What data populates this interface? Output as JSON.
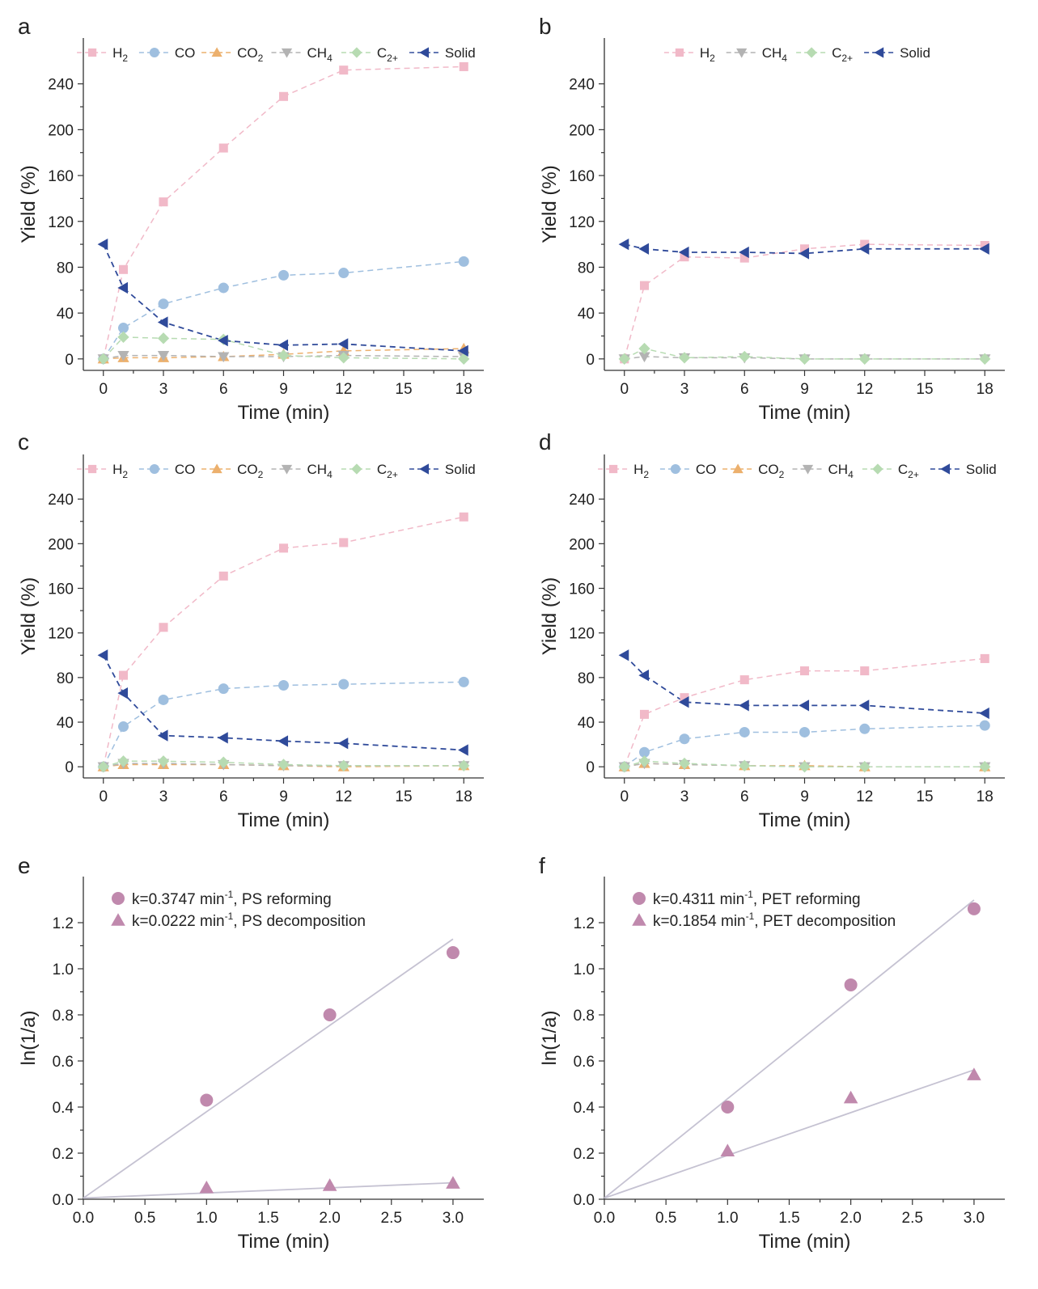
{
  "figure": {
    "colors": {
      "H2": "#f1b9c8",
      "CO": "#9fbfdf",
      "CO2": "#ecb06d",
      "CH4": "#b3b3b3",
      "C2+": "#b7dbb2",
      "Solid": "#2f4a9a",
      "kinetic_marker": "#c089ad",
      "fit_line": "#c5c2d2",
      "axis": "#333333"
    }
  },
  "chart_data": [
    {
      "panel": "a",
      "type": "line",
      "xlabel": "Time (min)",
      "ylabel": "Yield (%)",
      "xlim": [
        -1,
        19
      ],
      "ylim": [
        -10,
        280
      ],
      "xticks": [
        0,
        3,
        6,
        9,
        12,
        15,
        18
      ],
      "yticks": [
        0,
        40,
        80,
        120,
        160,
        200,
        240
      ],
      "x": [
        0,
        1,
        3,
        6,
        9,
        12,
        18
      ],
      "legend_position": "top",
      "series": [
        {
          "key": "H2",
          "name": "H",
          "sub": "2",
          "marker": "square",
          "values": [
            0,
            78,
            137,
            184,
            229,
            252,
            255
          ]
        },
        {
          "key": "CO",
          "name": "CO",
          "sub": "",
          "marker": "circle",
          "values": [
            0,
            27,
            48,
            62,
            73,
            75,
            85
          ]
        },
        {
          "key": "CO2",
          "name": "CO",
          "sub": "2",
          "marker": "triangle-up",
          "values": [
            0,
            1,
            1,
            2,
            4,
            7,
            9
          ]
        },
        {
          "key": "CH4",
          "name": "CH",
          "sub": "4",
          "marker": "triangle-down",
          "values": [
            0,
            3,
            3,
            2,
            2,
            3,
            2
          ]
        },
        {
          "key": "C2+",
          "name": "C",
          "sub": "2+",
          "marker": "diamond",
          "values": [
            0,
            19,
            18,
            17,
            3,
            1,
            0
          ]
        },
        {
          "key": "Solid",
          "name": "Solid",
          "sub": "",
          "marker": "triangle-left",
          "values": [
            100,
            62,
            32,
            16,
            12,
            13,
            7
          ]
        }
      ]
    },
    {
      "panel": "b",
      "type": "line",
      "xlabel": "Time (min)",
      "ylabel": "Yield (%)",
      "xlim": [
        -1,
        19
      ],
      "ylim": [
        -10,
        280
      ],
      "xticks": [
        0,
        3,
        6,
        9,
        12,
        15,
        18
      ],
      "yticks": [
        0,
        40,
        80,
        120,
        160,
        200,
        240
      ],
      "x": [
        0,
        1,
        3,
        6,
        9,
        12,
        18
      ],
      "legend_position": "top",
      "series": [
        {
          "key": "H2",
          "name": "H",
          "sub": "2",
          "marker": "square",
          "values": [
            0,
            64,
            89,
            88,
            96,
            100,
            99
          ]
        },
        {
          "key": "CH4",
          "name": "CH",
          "sub": "4",
          "marker": "triangle-down",
          "values": [
            0,
            2,
            1,
            1,
            0,
            0,
            0
          ]
        },
        {
          "key": "C2+",
          "name": "C",
          "sub": "2+",
          "marker": "diamond",
          "values": [
            0,
            9,
            1,
            2,
            0,
            0,
            0
          ]
        },
        {
          "key": "Solid",
          "name": "Solid",
          "sub": "",
          "marker": "triangle-left",
          "values": [
            100,
            96,
            93,
            93,
            92,
            96,
            96
          ]
        }
      ]
    },
    {
      "panel": "c",
      "type": "line",
      "xlabel": "Time (min)",
      "ylabel": "Yield (%)",
      "xlim": [
        -1,
        19
      ],
      "ylim": [
        -10,
        280
      ],
      "xticks": [
        0,
        3,
        6,
        9,
        12,
        15,
        18
      ],
      "yticks": [
        0,
        40,
        80,
        120,
        160,
        200,
        240
      ],
      "x": [
        0,
        1,
        3,
        6,
        9,
        12,
        18
      ],
      "legend_position": "top",
      "series": [
        {
          "key": "H2",
          "name": "H",
          "sub": "2",
          "marker": "square",
          "values": [
            0,
            82,
            125,
            171,
            196,
            201,
            224
          ]
        },
        {
          "key": "CO",
          "name": "CO",
          "sub": "",
          "marker": "circle",
          "values": [
            0,
            36,
            60,
            70,
            73,
            74,
            76
          ]
        },
        {
          "key": "CO2",
          "name": "CO",
          "sub": "2",
          "marker": "triangle-up",
          "values": [
            0,
            2,
            2,
            2,
            1,
            0,
            1
          ]
        },
        {
          "key": "CH4",
          "name": "CH",
          "sub": "4",
          "marker": "triangle-down",
          "values": [
            0,
            3,
            3,
            2,
            1,
            1,
            1
          ]
        },
        {
          "key": "C2+",
          "name": "C",
          "sub": "2+",
          "marker": "diamond",
          "values": [
            0,
            5,
            5,
            4,
            2,
            1,
            1
          ]
        },
        {
          "key": "Solid",
          "name": "Solid",
          "sub": "",
          "marker": "triangle-left",
          "values": [
            100,
            66,
            28,
            26,
            23,
            21,
            15
          ]
        }
      ]
    },
    {
      "panel": "d",
      "type": "line",
      "xlabel": "Time (min)",
      "ylabel": "Yield (%)",
      "xlim": [
        -1,
        19
      ],
      "ylim": [
        -10,
        280
      ],
      "xticks": [
        0,
        3,
        6,
        9,
        12,
        15,
        18
      ],
      "yticks": [
        0,
        40,
        80,
        120,
        160,
        200,
        240
      ],
      "x": [
        0,
        1,
        3,
        6,
        9,
        12,
        18
      ],
      "legend_position": "top",
      "series": [
        {
          "key": "H2",
          "name": "H",
          "sub": "2",
          "marker": "square",
          "values": [
            0,
            47,
            62,
            78,
            86,
            86,
            97
          ]
        },
        {
          "key": "CO",
          "name": "CO",
          "sub": "",
          "marker": "circle",
          "values": [
            0,
            13,
            25,
            31,
            31,
            34,
            37
          ]
        },
        {
          "key": "CO2",
          "name": "CO",
          "sub": "2",
          "marker": "triangle-up",
          "values": [
            0,
            3,
            2,
            1,
            1,
            0,
            0
          ]
        },
        {
          "key": "CH4",
          "name": "CH",
          "sub": "4",
          "marker": "triangle-down",
          "values": [
            0,
            3,
            2,
            1,
            0,
            0,
            0
          ]
        },
        {
          "key": "C2+",
          "name": "C",
          "sub": "2+",
          "marker": "diamond",
          "values": [
            0,
            5,
            3,
            1,
            0,
            0,
            0
          ]
        },
        {
          "key": "Solid",
          "name": "Solid",
          "sub": "",
          "marker": "triangle-left",
          "values": [
            100,
            82,
            58,
            55,
            55,
            55,
            48
          ]
        }
      ]
    },
    {
      "panel": "e",
      "type": "scatter",
      "xlabel": "Time (min)",
      "ylabel": "ln(1/a)",
      "xlim": [
        0,
        3.25
      ],
      "ylim": [
        0,
        1.4
      ],
      "xticks": [
        0.0,
        0.5,
        1.0,
        1.5,
        2.0,
        2.5,
        3.0
      ],
      "xtick_labels": [
        "0.0",
        "0.5",
        "1.0",
        "1.5",
        "2.0",
        "2.5",
        "3.0"
      ],
      "yticks": [
        0.0,
        0.2,
        0.4,
        0.6,
        0.8,
        1.0,
        1.2
      ],
      "ytick_labels": [
        "0.0",
        "0.2",
        "0.4",
        "0.6",
        "0.8",
        "1.0",
        "1.2"
      ],
      "legend_position": "top-left",
      "series": [
        {
          "name": "PS reforming",
          "k_label": "k=0.3747 min",
          "sup": "-1",
          "marker": "circle",
          "x": [
            1.0,
            2.0,
            3.0
          ],
          "y": [
            0.43,
            0.8,
            1.07
          ],
          "fit": {
            "slope": 0.3747,
            "intercept": 0.005
          }
        },
        {
          "name": "PS decomposition",
          "k_label": "k=0.0222 min",
          "sup": "-1",
          "marker": "triangle-up",
          "x": [
            1.0,
            2.0,
            3.0
          ],
          "y": [
            0.05,
            0.06,
            0.07
          ],
          "fit": {
            "slope": 0.0222,
            "intercept": 0.005
          }
        }
      ]
    },
    {
      "panel": "f",
      "type": "scatter",
      "xlabel": "Time (min)",
      "ylabel": "ln(1/a)",
      "xlim": [
        0,
        3.25
      ],
      "ylim": [
        0,
        1.4
      ],
      "xticks": [
        0.0,
        0.5,
        1.0,
        1.5,
        2.0,
        2.5,
        3.0
      ],
      "xtick_labels": [
        "0.0",
        "0.5",
        "1.0",
        "1.5",
        "2.0",
        "2.5",
        "3.0"
      ],
      "yticks": [
        0.0,
        0.2,
        0.4,
        0.6,
        0.8,
        1.0,
        1.2
      ],
      "ytick_labels": [
        "0.0",
        "0.2",
        "0.4",
        "0.6",
        "0.8",
        "1.0",
        "1.2"
      ],
      "legend_position": "top-left",
      "series": [
        {
          "name": "PET reforming",
          "k_label": "k=0.4311 min",
          "sup": "-1",
          "marker": "circle",
          "x": [
            1.0,
            2.0,
            3.0
          ],
          "y": [
            0.4,
            0.93,
            1.26
          ],
          "fit": {
            "slope": 0.4311,
            "intercept": 0.005
          }
        },
        {
          "name": "PET decomposition",
          "k_label": "k=0.1854 min",
          "sup": "-1",
          "marker": "triangle-up",
          "x": [
            1.0,
            2.0,
            3.0
          ],
          "y": [
            0.21,
            0.44,
            0.54
          ],
          "fit": {
            "slope": 0.1854,
            "intercept": 0.005
          }
        }
      ]
    }
  ]
}
